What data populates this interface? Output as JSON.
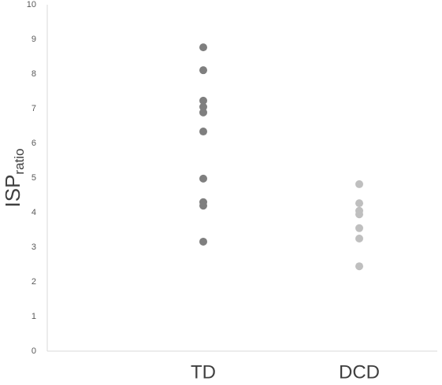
{
  "chart_data": {
    "type": "strip",
    "y_label": "ISP",
    "y_label_sub": "ratio",
    "ylim": [
      0,
      10
    ],
    "yticks": [
      0,
      1,
      2,
      3,
      4,
      5,
      6,
      7,
      8,
      9,
      10
    ],
    "series": [
      {
        "name": "TD",
        "color": "#7f7f7f",
        "values": [
          8.77,
          8.11,
          7.23,
          7.05,
          6.89,
          6.34,
          4.98,
          4.3,
          4.2,
          3.16
        ]
      },
      {
        "name": "DCD",
        "color": "#bfbfbf",
        "values": [
          4.82,
          4.27,
          4.05,
          3.95,
          3.55,
          3.25,
          2.45
        ]
      }
    ]
  }
}
